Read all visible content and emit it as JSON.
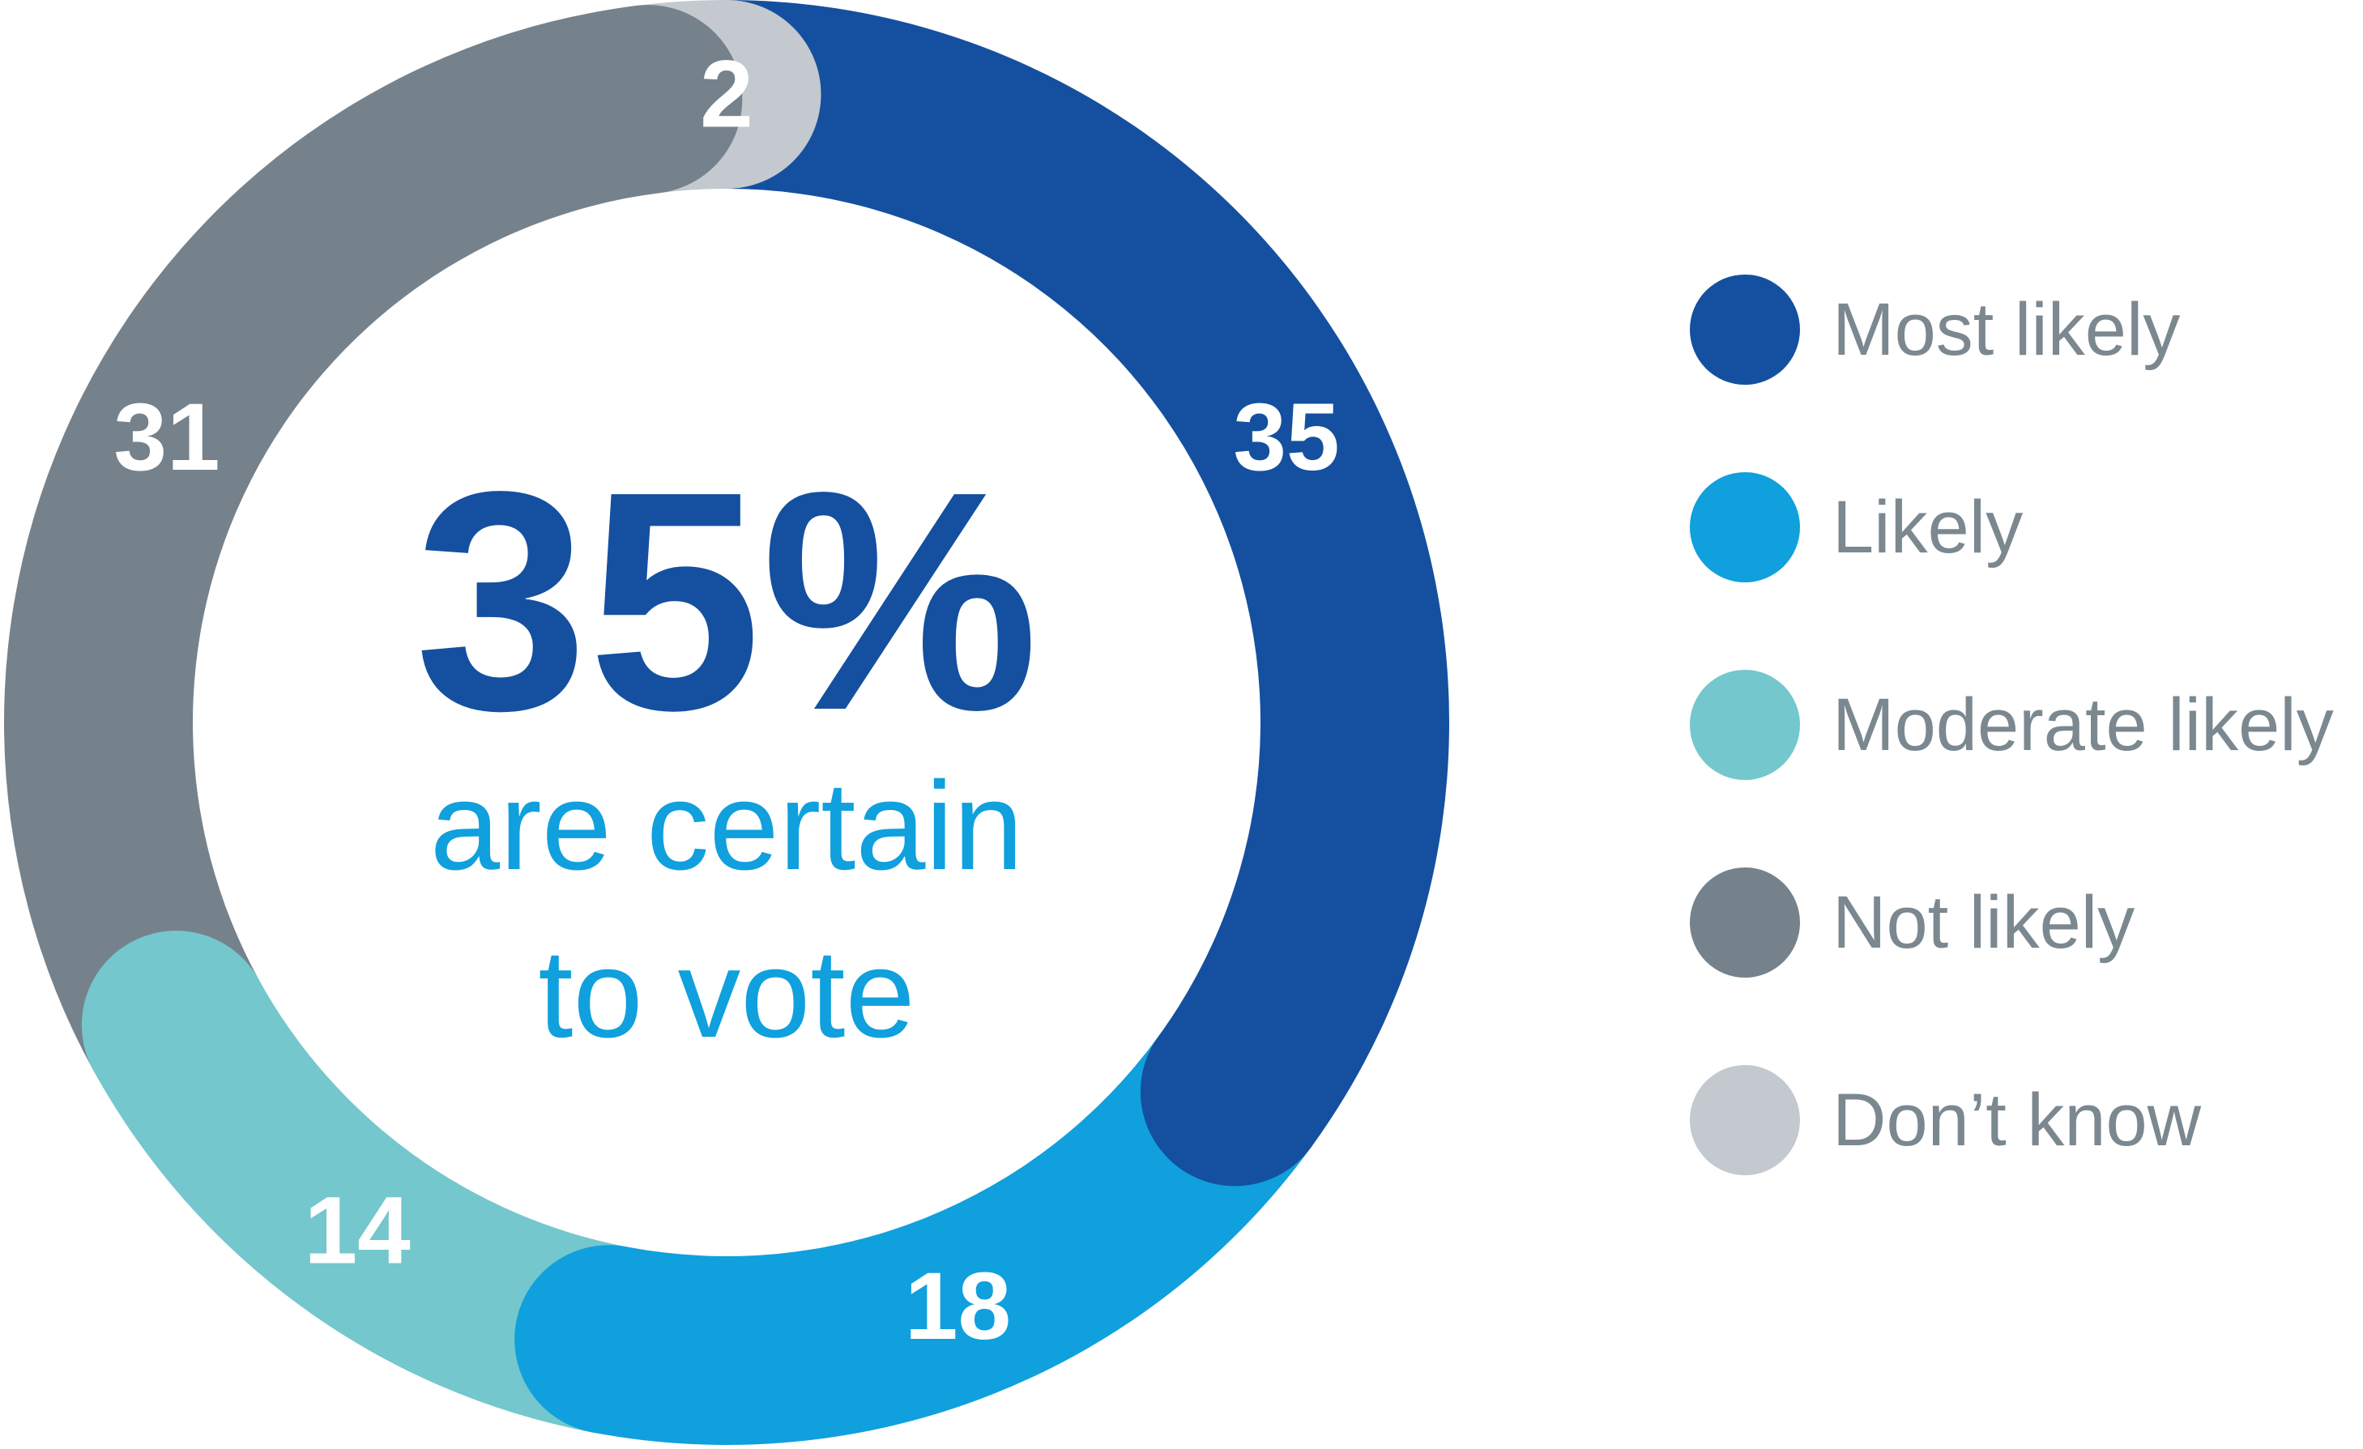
{
  "page": {
    "background": "#FFFFFF"
  },
  "chart_data": {
    "type": "pie",
    "variant": "donut-rounded-caps",
    "units": "percent",
    "start_angle_deg": 0,
    "clockwise": true,
    "legend_position": "right",
    "total": 100,
    "segments": [
      {
        "label": "Most likely",
        "value": 35,
        "color": "#14509F"
      },
      {
        "label": "Likely",
        "value": 18,
        "color": "#0FA0DD"
      },
      {
        "label": "Moderate likely",
        "value": 14,
        "color": "#74C7CD"
      },
      {
        "label": "Not likely",
        "value": 31,
        "color": "#75828C"
      },
      {
        "label": "Don’t know",
        "value": 2,
        "color": "#C3C9CE"
      }
    ],
    "segment_label_color": "#FFFFFF",
    "center_text": {
      "headline": "35%",
      "line1": "are certain",
      "line2": "to vote",
      "headline_color": "#14509F",
      "line_color": "#0FA0DD"
    },
    "legend_text_color": "#7B8890"
  }
}
